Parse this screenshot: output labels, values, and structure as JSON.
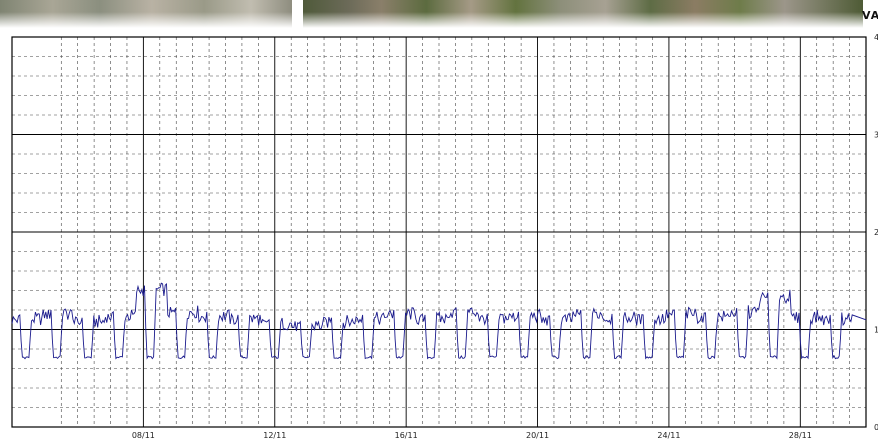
{
  "unit_label": "VA",
  "chart_data": {
    "type": "line",
    "title": "",
    "xlabel": "",
    "ylabel": "VA",
    "x_tick_labels": [
      "08/11",
      "12/11",
      "16/11",
      "20/11",
      "24/11",
      "28/11"
    ],
    "y_tick_labels": [
      "0",
      "1",
      "2",
      "3",
      "4"
    ],
    "ylim": [
      0,
      4
    ],
    "grid": true,
    "line_color": "#1a1a8c",
    "daily_minimum": 0.7,
    "series": [
      {
        "x": [
          "04/11",
          "05/11",
          "06/11",
          "07/11",
          "08/11",
          "09/11",
          "10/11",
          "11/11",
          "12/11",
          "13/11",
          "14/11",
          "15/11",
          "16/11",
          "17/11",
          "18/11",
          "19/11",
          "20/11",
          "21/11",
          "22/11",
          "23/11",
          "24/11",
          "25/11",
          "26/11",
          "27/11",
          "28/11",
          "29/11",
          "30/11"
        ],
        "values": [
          1.15,
          1.2,
          1.12,
          1.18,
          1.45,
          1.22,
          1.18,
          1.15,
          1.1,
          1.08,
          1.12,
          1.15,
          1.2,
          1.15,
          1.22,
          1.16,
          1.18,
          1.14,
          1.2,
          1.16,
          1.15,
          1.2,
          1.17,
          1.22,
          1.38,
          1.17,
          1.15
        ]
      }
    ]
  }
}
